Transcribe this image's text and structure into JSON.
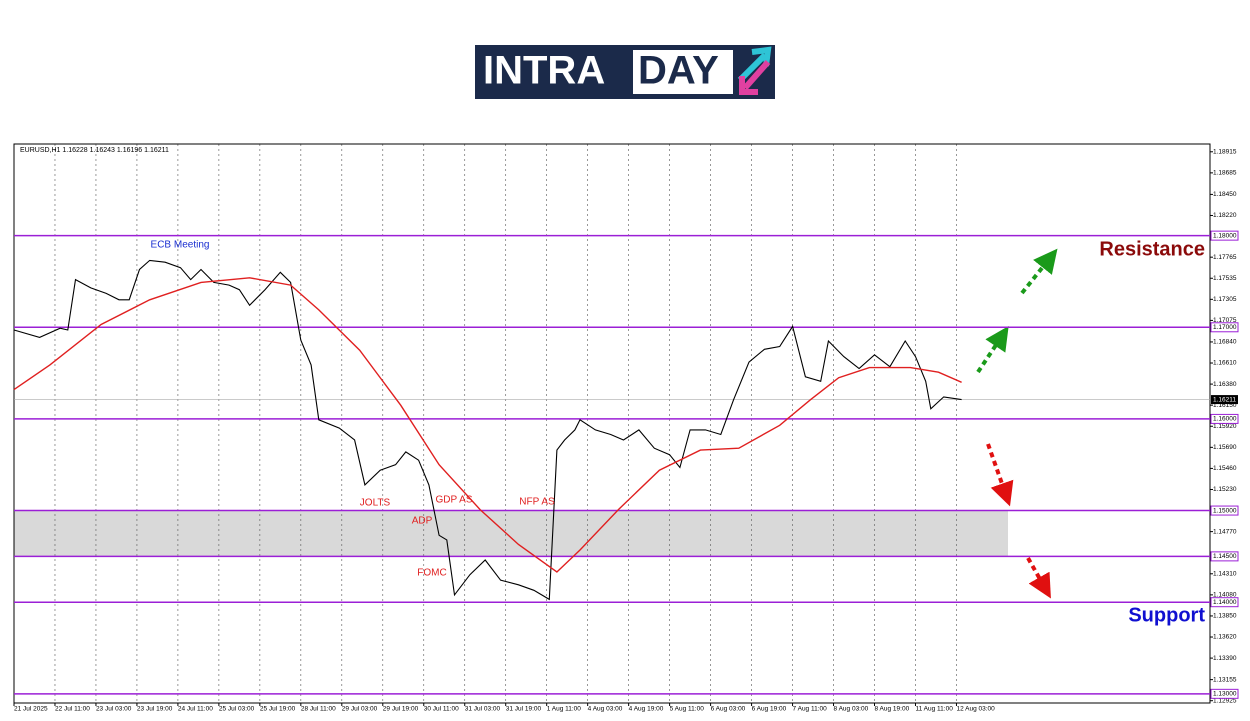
{
  "logo": [
    "INTRA",
    "DAY"
  ],
  "chart_data": {
    "type": "line",
    "title": "EURUSD,H1  1.16228 1.16243 1.16196 1.16211",
    "xlim": [
      0,
      467
    ],
    "ylim": [
      1.129,
      1.19
    ],
    "grid": true,
    "xticks": [
      {
        "value": 0,
        "label": "21 Jul 2025"
      },
      {
        "value": 16,
        "label": "22 Jul 11:00"
      },
      {
        "value": 32,
        "label": "23 Jul 03:00"
      },
      {
        "value": 48,
        "label": "23 Jul 19:00"
      },
      {
        "value": 64,
        "label": "24 Jul 11:00"
      },
      {
        "value": 80,
        "label": "25 Jul 03:00"
      },
      {
        "value": 96,
        "label": "25 Jul 19:00"
      },
      {
        "value": 112,
        "label": "28 Jul 11:00"
      },
      {
        "value": 128,
        "label": "29 Jul 03:00"
      },
      {
        "value": 144,
        "label": "29 Jul 19:00"
      },
      {
        "value": 160,
        "label": "30 Jul 11:00"
      },
      {
        "value": 176,
        "label": "31 Jul 03:00"
      },
      {
        "value": 192,
        "label": "31 Jul 19:00"
      },
      {
        "value": 208,
        "label": "1 Aug 11:00"
      },
      {
        "value": 224,
        "label": "4 Aug 03:00"
      },
      {
        "value": 240,
        "label": "4 Aug 19:00"
      },
      {
        "value": 256,
        "label": "5 Aug 11:00"
      },
      {
        "value": 272,
        "label": "6 Aug 03:00"
      },
      {
        "value": 288,
        "label": "6 Aug 19:00"
      },
      {
        "value": 304,
        "label": "7 Aug 11:00"
      },
      {
        "value": 320,
        "label": "8 Aug 03:00"
      },
      {
        "value": 336,
        "label": "8 Aug 19:00"
      },
      {
        "value": 352,
        "label": "11 Aug 11:00"
      },
      {
        "value": 368,
        "label": "12 Aug 03:00"
      }
    ],
    "yticks": [
      1.18915,
      1.18685,
      {
        "value": 1.1845,
        "label": "1.18450"
      },
      {
        "value": 1.1822,
        "label": "1.18220"
      },
      1.17765,
      1.17535,
      1.17305,
      1.17075,
      {
        "value": 1.1684,
        "label": "1.16840"
      },
      {
        "value": 1.1661,
        "label": "1.16610"
      },
      {
        "value": 1.1638,
        "label": "1.16380"
      },
      {
        "value": 1.1615,
        "label": "1.16150"
      },
      {
        "value": 1.1592,
        "label": "1.15920"
      },
      {
        "value": 1.1569,
        "label": "1.15690"
      },
      {
        "value": 1.1546,
        "label": "1.15460"
      },
      {
        "value": 1.1523,
        "label": "1.15230"
      },
      {
        "value": 1.1477,
        "label": "1.14770"
      },
      {
        "value": 1.1431,
        "label": "1.14310"
      },
      {
        "value": 1.1408,
        "label": "1.14080"
      },
      {
        "value": 1.1385,
        "label": "1.13850"
      },
      {
        "value": 1.1362,
        "label": "1.13620"
      },
      {
        "value": 1.1339,
        "label": "1.13390"
      },
      1.13155,
      1.12925
    ],
    "levels": [
      {
        "value": 1.18,
        "label": "1.18000"
      },
      {
        "value": 1.17,
        "label": "1.17000"
      },
      {
        "value": 1.16,
        "label": "1.16000"
      },
      {
        "value": 1.15,
        "label": "1.15000"
      },
      {
        "value": 1.145,
        "label": "1.14500"
      },
      {
        "value": 1.14,
        "label": "1.14000"
      },
      {
        "value": 1.13,
        "label": "1.13000"
      }
    ],
    "level_color": "#9b1fd6",
    "zone": [
      1.145,
      1.15
    ],
    "current_price": 1.16211,
    "series": [
      {
        "color": "#000000",
        "x": [
          0,
          10,
          18,
          21,
          24,
          30,
          36,
          41,
          45,
          49,
          53,
          59,
          65,
          69,
          73,
          78,
          84,
          88,
          92,
          98,
          104,
          108,
          112,
          116,
          119,
          127,
          133,
          137,
          143,
          149,
          153,
          158,
          162,
          166,
          169,
          172,
          178,
          184,
          190,
          197,
          203,
          209,
          212,
          215,
          219,
          221,
          227,
          233,
          238,
          244,
          250,
          256,
          260,
          264,
          270,
          276,
          281,
          287,
          293,
          299,
          304,
          309,
          315,
          318,
          324,
          330,
          336,
          342,
          348,
          352,
          356,
          358,
          363,
          370
        ],
        "values": [
          1.1697,
          1.1689,
          1.1699,
          1.1697,
          1.1752,
          1.1743,
          1.1737,
          1.173,
          1.173,
          1.1763,
          1.1773,
          1.1771,
          1.1765,
          1.1752,
          1.1763,
          1.1749,
          1.1746,
          1.1741,
          1.1724,
          1.1741,
          1.176,
          1.1749,
          1.1686,
          1.1659,
          1.1599,
          1.159,
          1.1577,
          1.1528,
          1.1544,
          1.155,
          1.1564,
          1.1555,
          1.1528,
          1.1473,
          1.1468,
          1.1408,
          1.143,
          1.1446,
          1.1424,
          1.1419,
          1.1413,
          1.1403,
          1.1566,
          1.1577,
          1.1588,
          1.1599,
          1.1588,
          1.1583,
          1.1577,
          1.1588,
          1.1568,
          1.1561,
          1.1547,
          1.1588,
          1.1588,
          1.1583,
          1.1621,
          1.1662,
          1.1676,
          1.1679,
          1.1701,
          1.1646,
          1.1641,
          1.1685,
          1.1668,
          1.1655,
          1.167,
          1.1657,
          1.1685,
          1.1668,
          1.1641,
          1.1611,
          1.1624,
          1.16211
        ]
      },
      {
        "color": "#e02020",
        "x": [
          0,
          14,
          34,
          53,
          73,
          92,
          108,
          119,
          135,
          151,
          166,
          182,
          197,
          212,
          221,
          236,
          252,
          268,
          283,
          299,
          311,
          322,
          334,
          350,
          361,
          370
        ],
        "values": [
          1.1632,
          1.1659,
          1.1703,
          1.173,
          1.1749,
          1.1754,
          1.1746,
          1.1719,
          1.1675,
          1.1615,
          1.155,
          1.1501,
          1.1463,
          1.1433,
          1.1457,
          1.1501,
          1.1544,
          1.1566,
          1.1568,
          1.1593,
          1.1621,
          1.1645,
          1.1656,
          1.1656,
          1.1651,
          1.164
        ]
      }
    ],
    "annotations": [
      "ECB Meeting",
      "JOLTS",
      "GDP AS",
      "ADP",
      "FOMC",
      "NFP AS"
    ],
    "resistance": "Resistance",
    "support": "Support"
  }
}
